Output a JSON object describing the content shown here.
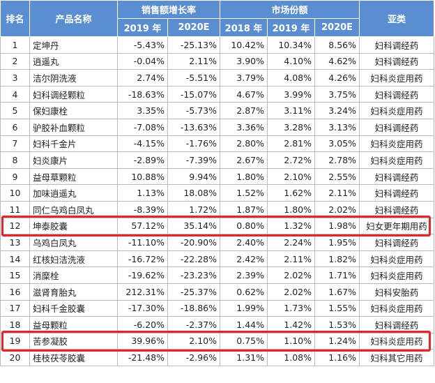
{
  "header": {
    "rank": "排名",
    "product": "产品名称",
    "growth_group": "销售额增长率",
    "share_group": "市场份额",
    "category": "亚类",
    "growth_2019": "2019 年",
    "growth_2020e": "2020E",
    "share_2018": "2018 年",
    "share_2019": "2019 年",
    "share_2020e": "2020E"
  },
  "rows": [
    {
      "rank": "1",
      "name": "定坤丹",
      "g2019": "-5.43%",
      "g2020e": "-25.13%",
      "s2018": "10.42%",
      "s2019": "10.34%",
      "s2020e": "8.56%",
      "cat": "妇科调经药"
    },
    {
      "rank": "2",
      "name": "逍遥丸",
      "g2019": "-0.04%",
      "g2020e": "2.11%",
      "s2018": "3.90%",
      "s2019": "4.10%",
      "s2020e": "4.62%",
      "cat": "妇科调经药"
    },
    {
      "rank": "3",
      "name": "洁尔阴洗液",
      "g2019": "2.74%",
      "g2020e": "-5.51%",
      "s2018": "3.79%",
      "s2019": "4.08%",
      "s2020e": "4.26%",
      "cat": "妇科炎症用药"
    },
    {
      "rank": "4",
      "name": "妇科调经颗粒",
      "g2019": "-18.63%",
      "g2020e": "-15.07%",
      "s2018": "4.67%",
      "s2019": "3.99%",
      "s2020e": "3.75%",
      "cat": "妇科调经药"
    },
    {
      "rank": "5",
      "name": "保妇康栓",
      "g2019": "3.35%",
      "g2020e": "-5.73%",
      "s2018": "2.87%",
      "s2019": "3.11%",
      "s2020e": "3.24%",
      "cat": "妇科炎症用药"
    },
    {
      "rank": "6",
      "name": "驴胶补血颗粒",
      "g2019": "-7.08%",
      "g2020e": "-13.63%",
      "s2018": "3.36%",
      "s2019": "3.28%",
      "s2020e": "3.13%",
      "cat": "妇科调经药"
    },
    {
      "rank": "7",
      "name": "妇科千金片",
      "g2019": "-4.15%",
      "g2020e": "-1.76%",
      "s2018": "2.80%",
      "s2019": "2.81%",
      "s2020e": "3.05%",
      "cat": "妇科炎症用药"
    },
    {
      "rank": "8",
      "name": "妇炎康片",
      "g2019": "-2.89%",
      "g2020e": "-7.39%",
      "s2018": "2.67%",
      "s2019": "2.72%",
      "s2020e": "2.78%",
      "cat": "妇科炎症用药"
    },
    {
      "rank": "9",
      "name": "益母草颗粒",
      "g2019": "10.88%",
      "g2020e": "9.94%",
      "s2018": "1.80%",
      "s2019": "2.10%",
      "s2020e": "2.55%",
      "cat": "妇科调经药"
    },
    {
      "rank": "10",
      "name": "加味逍遥丸",
      "g2019": "1.13%",
      "g2020e": "18.08%",
      "s2018": "1.52%",
      "s2019": "1.62%",
      "s2020e": "2.11%",
      "cat": "妇科调经药"
    },
    {
      "rank": "11",
      "name": "同仁乌鸡白凤丸",
      "g2019": "-8.39%",
      "g2020e": "1.72%",
      "s2018": "1.87%",
      "s2019": "1.80%",
      "s2020e": "2.02%",
      "cat": "妇科调经药"
    },
    {
      "rank": "12",
      "name": "坤泰胶囊",
      "g2019": "57.12%",
      "g2020e": "35.14%",
      "s2018": "0.80%",
      "s2019": "1.32%",
      "s2020e": "1.98%",
      "cat": "妇女更年期用药"
    },
    {
      "rank": "13",
      "name": "乌鸡白凤丸",
      "g2019": "-11.10%",
      "g2020e": "-20.90%",
      "s2018": "2.40%",
      "s2019": "2.24%",
      "s2020e": "1.95%",
      "cat": "妇科调经药"
    },
    {
      "rank": "14",
      "name": "红核妇洁洗液",
      "g2019": "-16.72%",
      "g2020e": "-22.28%",
      "s2018": "2.42%",
      "s2019": "2.11%",
      "s2020e": "1.82%",
      "cat": "妇科炎症用药"
    },
    {
      "rank": "15",
      "name": "消糜栓",
      "g2019": "-19.62%",
      "g2020e": "-23.23%",
      "s2018": "2.39%",
      "s2019": "2.02%",
      "s2020e": "1.71%",
      "cat": "妇科炎症用药"
    },
    {
      "rank": "16",
      "name": "滋肾育胎丸",
      "g2019": "212.31%",
      "g2020e": "-25.37%",
      "s2018": "0.62%",
      "s2019": "2.02%",
      "s2020e": "1.67%",
      "cat": "妇科安胎药"
    },
    {
      "rank": "17",
      "name": "妇科千金胶囊",
      "g2019": "-17.30%",
      "g2020e": "-18.86%",
      "s2018": "1.99%",
      "s2019": "1.73%",
      "s2020e": "1.55%",
      "cat": "妇科炎症用药"
    },
    {
      "rank": "18",
      "name": "益母颗粒",
      "g2019": "-6.20%",
      "g2020e": "-2.37%",
      "s2018": "1.44%",
      "s2019": "1.42%",
      "s2020e": "1.53%",
      "cat": "妇科调经药"
    },
    {
      "rank": "19",
      "name": "苦参凝胶",
      "g2019": "39.96%",
      "g2020e": "2.10%",
      "s2018": "0.75%",
      "s2019": "1.10%",
      "s2020e": "1.24%",
      "cat": "妇科炎症用药"
    },
    {
      "rank": "20",
      "name": "桂枝茯苓胶囊",
      "g2019": "-21.48%",
      "g2020e": "-2.96%",
      "s2018": "1.31%",
      "s2019": "1.08%",
      "s2020e": "1.16%",
      "cat": "妇科其它用药"
    }
  ],
  "highlights": {
    "ranks": [
      "12",
      "19"
    ],
    "color": "#e5242b"
  },
  "colors": {
    "header_bg": "#5b8ed0",
    "grid": "#b9b9b9"
  }
}
